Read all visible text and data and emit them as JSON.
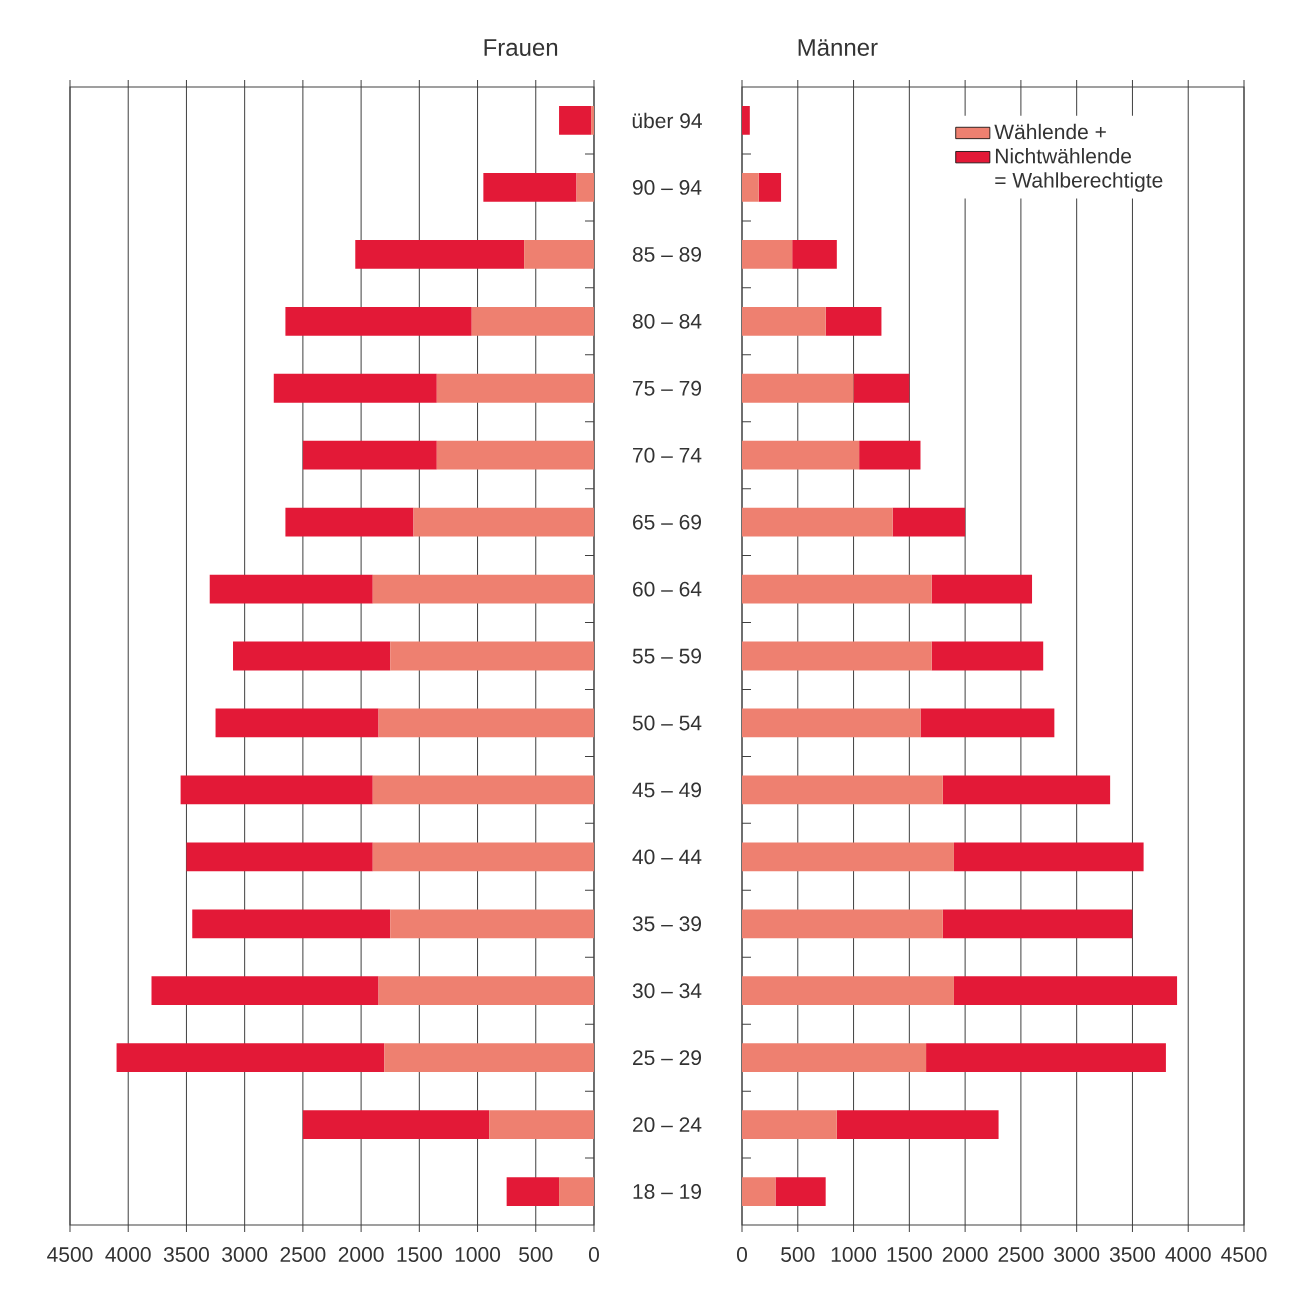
{
  "chart_data": [
    {
      "type": "bar",
      "orientation": "horizontal",
      "stacked": true,
      "title": "Frauen",
      "categories": [
        null,
        null,
        null,
        null,
        null,
        null,
        null,
        null,
        null,
        null,
        null,
        null,
        null,
        null,
        null,
        null,
        null
      ],
      "series": [
        {
          "color": "#ee8070",
          "values": [
            25,
            150,
            600,
            1050,
            1350,
            1350,
            1550,
            1900,
            1750,
            1850,
            1900,
            1900,
            1750,
            1850,
            1800,
            900,
            300
          ]
        },
        {
          "color": "#e31937",
          "values": [
            275,
            800,
            1450,
            1600,
            1400,
            1150,
            1100,
            1400,
            1350,
            1400,
            1650,
            1600,
            1700,
            1950,
            2300,
            1600,
            450
          ]
        }
      ],
      "xlim": [
        4500,
        0
      ],
      "xticks": [
        4500,
        4000,
        3500,
        3000,
        2500,
        2000,
        1500,
        1000,
        500,
        0
      ],
      "grid": "x"
    },
    {
      "type": "bar",
      "orientation": "horizontal",
      "stacked": true,
      "title": "Männer",
      "categories": [
        "über 94",
        "90 – 94",
        "85 – 89",
        "80 – 84",
        "75 – 79",
        "70 – 74",
        "65 – 69",
        "60 – 64",
        "55 – 59",
        "50 – 54",
        "45 – 49",
        "40 – 44",
        "35 – 39",
        "30 – 34",
        "25 – 29",
        "20 – 24",
        "18 – 19"
      ],
      "series": [
        {
          "name": "Wählende +",
          "color": "#ee8070",
          "values": [
            0,
            150,
            450,
            750,
            1000,
            1050,
            1350,
            1700,
            1700,
            1600,
            1800,
            1900,
            1800,
            1900,
            1650,
            850,
            300
          ]
        },
        {
          "name": "Nichtwählende",
          "color": "#e31937",
          "values": [
            70,
            200,
            400,
            500,
            500,
            550,
            650,
            900,
            1000,
            1200,
            1500,
            1700,
            1700,
            2000,
            2150,
            1450,
            450
          ]
        }
      ],
      "annotations": [
        "= Wahlberechtigte"
      ],
      "xlim": [
        0,
        4500
      ],
      "xticks": [
        0,
        500,
        1000,
        1500,
        2000,
        2500,
        3000,
        3500,
        4000,
        4500
      ],
      "grid": "x",
      "legend": "top right"
    }
  ]
}
